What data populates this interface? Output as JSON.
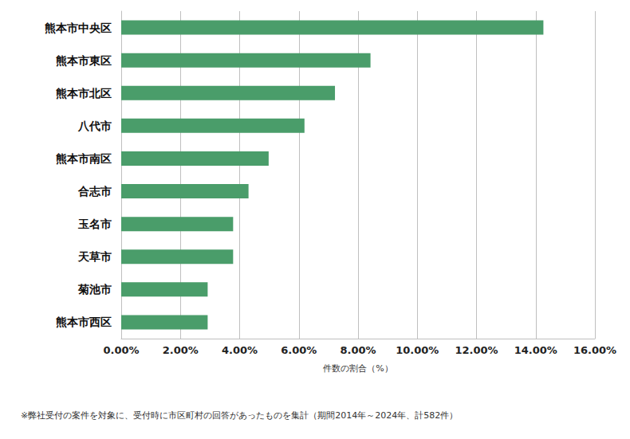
{
  "chart_data": {
    "type": "bar",
    "orientation": "horizontal",
    "categories": [
      "熊本市中央区",
      "熊本市東区",
      "熊本市北区",
      "八代市",
      "熊本市南区",
      "合志市",
      "玉名市",
      "天草市",
      "菊池市",
      "熊本市西区"
    ],
    "values": [
      14.26,
      8.42,
      7.22,
      6.19,
      4.98,
      4.3,
      3.78,
      3.78,
      2.92,
      2.92
    ],
    "color": "#4a9d6a",
    "xlabel": "件数の割合（%）",
    "footnote": "※弊社受付の案件を対象に、受付時に市区町村の回答があったものを集計（期間2014年～2024年、計582件）",
    "xlim": [
      0,
      16
    ],
    "xticks": [
      {
        "value": 0,
        "label": "0.00%"
      },
      {
        "value": 2,
        "label": "2.00%"
      },
      {
        "value": 4,
        "label": "4.00%"
      },
      {
        "value": 6,
        "label": "6.00%"
      },
      {
        "value": 8,
        "label": "8.00%"
      },
      {
        "value": 10,
        "label": "10.00%"
      },
      {
        "value": 12,
        "label": "12.00%"
      },
      {
        "value": 14,
        "label": "14.00%"
      },
      {
        "value": 16,
        "label": "16.00%"
      }
    ],
    "grid": true
  }
}
